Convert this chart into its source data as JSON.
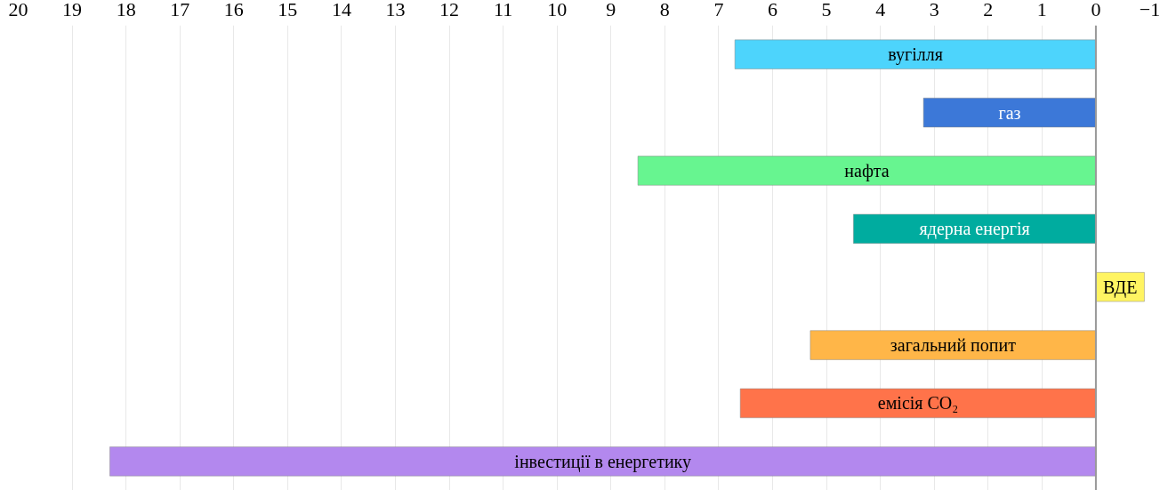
{
  "chart_data": {
    "type": "bar",
    "orientation": "horizontal",
    "categories": [
      "вугілля",
      "газ",
      "нафта",
      "ядерна енергія",
      "ВДЕ",
      "загальний попит",
      "емісія CO₂",
      "інвестиції в енергетику"
    ],
    "values": [
      6.7,
      3.2,
      8.5,
      4.5,
      -0.9,
      5.3,
      6.6,
      18.3
    ],
    "colors": [
      "#4dd4fc",
      "#3c78d8",
      "#67f590",
      "#00ac9f",
      "#fff462",
      "#ffb648",
      "#ff734a",
      "#b388ee"
    ],
    "xlim": [
      20,
      -1
    ],
    "xticks": [
      20,
      19,
      18,
      17,
      16,
      15,
      14,
      13,
      12,
      11,
      10,
      9,
      8,
      7,
      6,
      5,
      4,
      3,
      2,
      1,
      0,
      -1
    ],
    "grid": "x",
    "ref_lines": [
      {
        "axis": "x",
        "value": 0,
        "color": "#999999"
      }
    ]
  }
}
